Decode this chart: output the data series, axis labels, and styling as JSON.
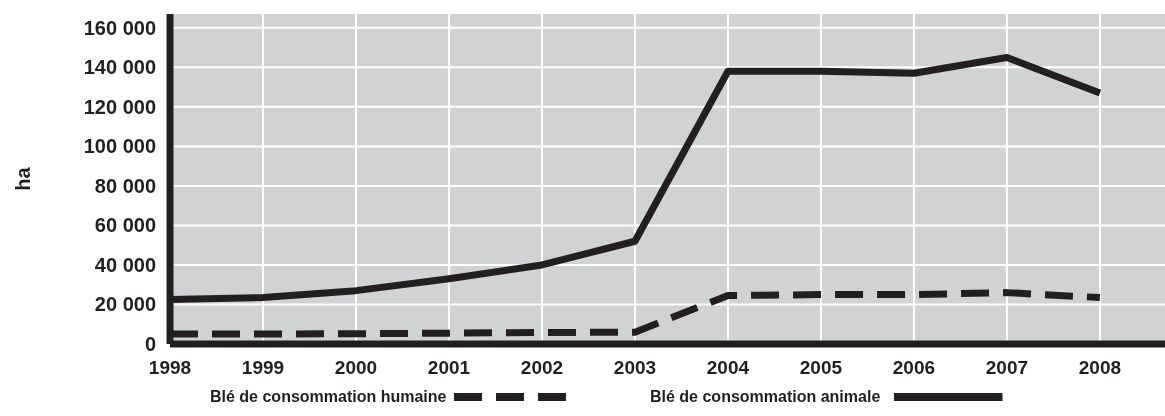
{
  "chart_data": {
    "type": "line",
    "ylabel": "ha",
    "x": [
      1998,
      1999,
      2000,
      2001,
      2002,
      2003,
      2004,
      2005,
      2006,
      2007,
      2008
    ],
    "series": [
      {
        "name": "Blé de consommation humaine",
        "color": "#231f20",
        "line_style": "dashed",
        "values": [
          5000,
          5000,
          5200,
          5500,
          5800,
          6000,
          24500,
          25000,
          25000,
          26000,
          23500
        ]
      },
      {
        "name": "Blé de consommation animale",
        "color": "#231f20",
        "line_style": "solid",
        "values": [
          22500,
          23500,
          27000,
          33000,
          40000,
          52000,
          138000,
          138000,
          137000,
          145000,
          127000
        ]
      }
    ],
    "xlim": [
      1998,
      2008.7
    ],
    "xticks": [
      1998,
      1999,
      2000,
      2001,
      2002,
      2003,
      2004,
      2005,
      2006,
      2007,
      2008
    ],
    "ylim": [
      0,
      167000
    ],
    "yticks": [
      {
        "value": 0,
        "label": "0"
      },
      {
        "value": 20000,
        "label": "20 000"
      },
      {
        "value": 40000,
        "label": "40 000"
      },
      {
        "value": 60000,
        "label": "60 000"
      },
      {
        "value": 80000,
        "label": "80 000"
      },
      {
        "value": 100000,
        "label": "100 000"
      },
      {
        "value": 120000,
        "label": "120 000"
      },
      {
        "value": 140000,
        "label": "140 000"
      },
      {
        "value": 160000,
        "label": "160 000"
      }
    ],
    "grid": true,
    "legend": "bottom",
    "marker": "none"
  }
}
